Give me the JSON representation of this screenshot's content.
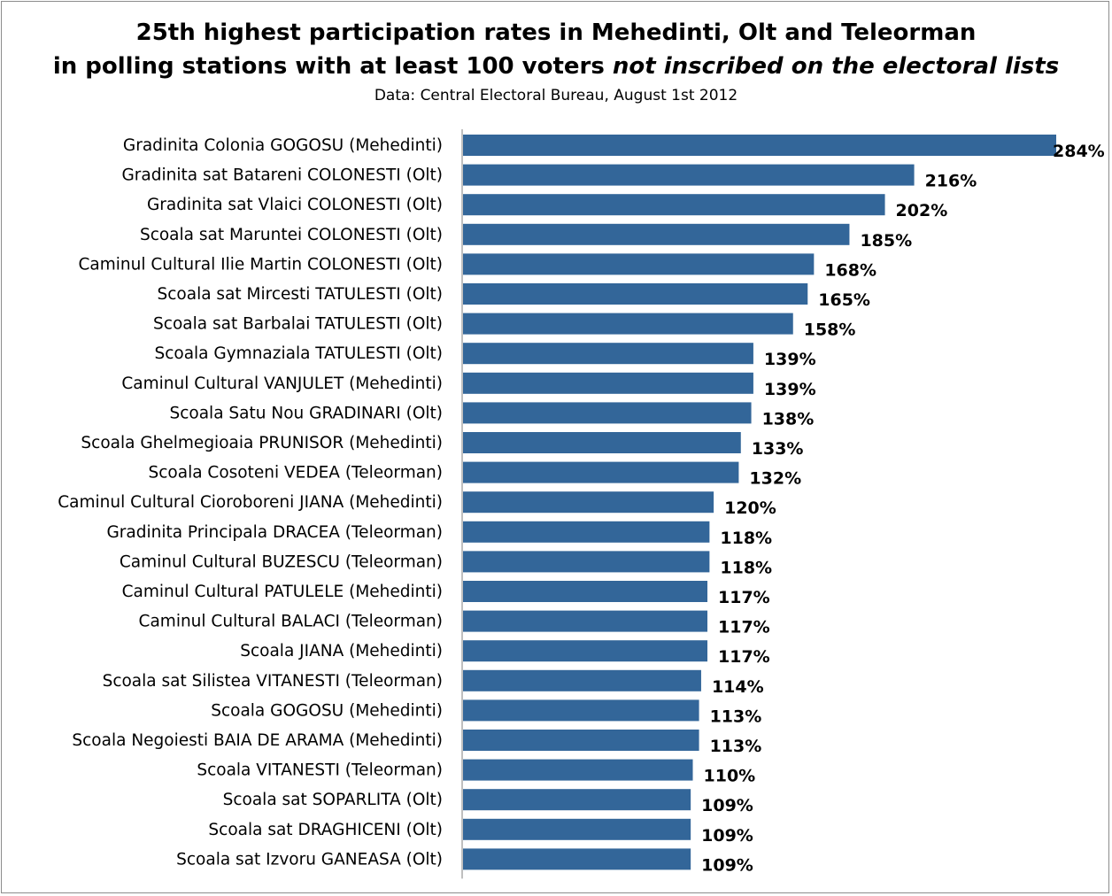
{
  "title_line1": "25th highest participation rates in Mehedinti, Olt and Teleorman",
  "title_line2_normal": "in polling stations with at least 100 voters ",
  "title_line2_italic": "not inscribed on the electoral lists",
  "subtitle": "Data: Central Electoral Bureau, August 1st 2012",
  "colors": {
    "bar": "#336699",
    "axis": "#7f7f7f",
    "frame": "#8c8c8c"
  },
  "chart_data": {
    "type": "bar",
    "orientation": "horizontal",
    "title": "25th highest participation rates in Mehedinti, Olt and Teleorman in polling stations with at least 100 voters not inscribed on the electoral lists",
    "subtitle": "Data: Central Electoral Bureau, August 1st 2012",
    "xlabel": "",
    "ylabel": "",
    "value_suffix": "%",
    "xlim": [
      0,
      284
    ],
    "grid": false,
    "legend": "none",
    "categories": [
      "Gradinita Colonia GOGOSU (Mehedinti)",
      "Gradinita sat  Batareni COLONESTI (Olt)",
      "Gradinita sat Vlaici COLONESTI (Olt)",
      "Scoala sat Maruntei COLONESTI (Olt)",
      "Caminul Cultural Ilie Martin COLONESTI (Olt)",
      "Scoala sat Mircesti TATULESTI (Olt)",
      "Scoala sat Barbalai  TATULESTI (Olt)",
      "Scoala Gymnaziala  TATULESTI (Olt)",
      "Caminul Cultural VANJULET (Mehedinti)",
      "Scoala Satu Nou GRADINARI (Olt)",
      "Scoala Ghelmegioaia PRUNISOR (Mehedinti)",
      "Scoala Cosoteni VEDEA (Teleorman)",
      "Caminul Cultural Cioroboreni JIANA (Mehedinti)",
      "Gradinita Principala DRACEA (Teleorman)",
      "Caminul Cultural BUZESCU (Teleorman)",
      "Caminul Cultural PATULELE (Mehedinti)",
      "Caminul Cultural BALACI (Teleorman)",
      "Scoala JIANA (Mehedinti)",
      "Scoala sat Silistea VITANESTI (Teleorman)",
      "Scoala GOGOSU (Mehedinti)",
      "Scoala Negoiesti BAIA DE ARAMA (Mehedinti)",
      "Scoala VITANESTI (Teleorman)",
      "Scoala sat SOPARLITA (Olt)",
      "Scoala sat DRAGHICENI (Olt)",
      "Scoala sat Izvoru GANEASA (Olt)"
    ],
    "values": [
      284,
      216,
      202,
      185,
      168,
      165,
      158,
      139,
      139,
      138,
      133,
      132,
      120,
      118,
      118,
      117,
      117,
      117,
      114,
      113,
      113,
      110,
      109,
      109,
      109
    ]
  }
}
